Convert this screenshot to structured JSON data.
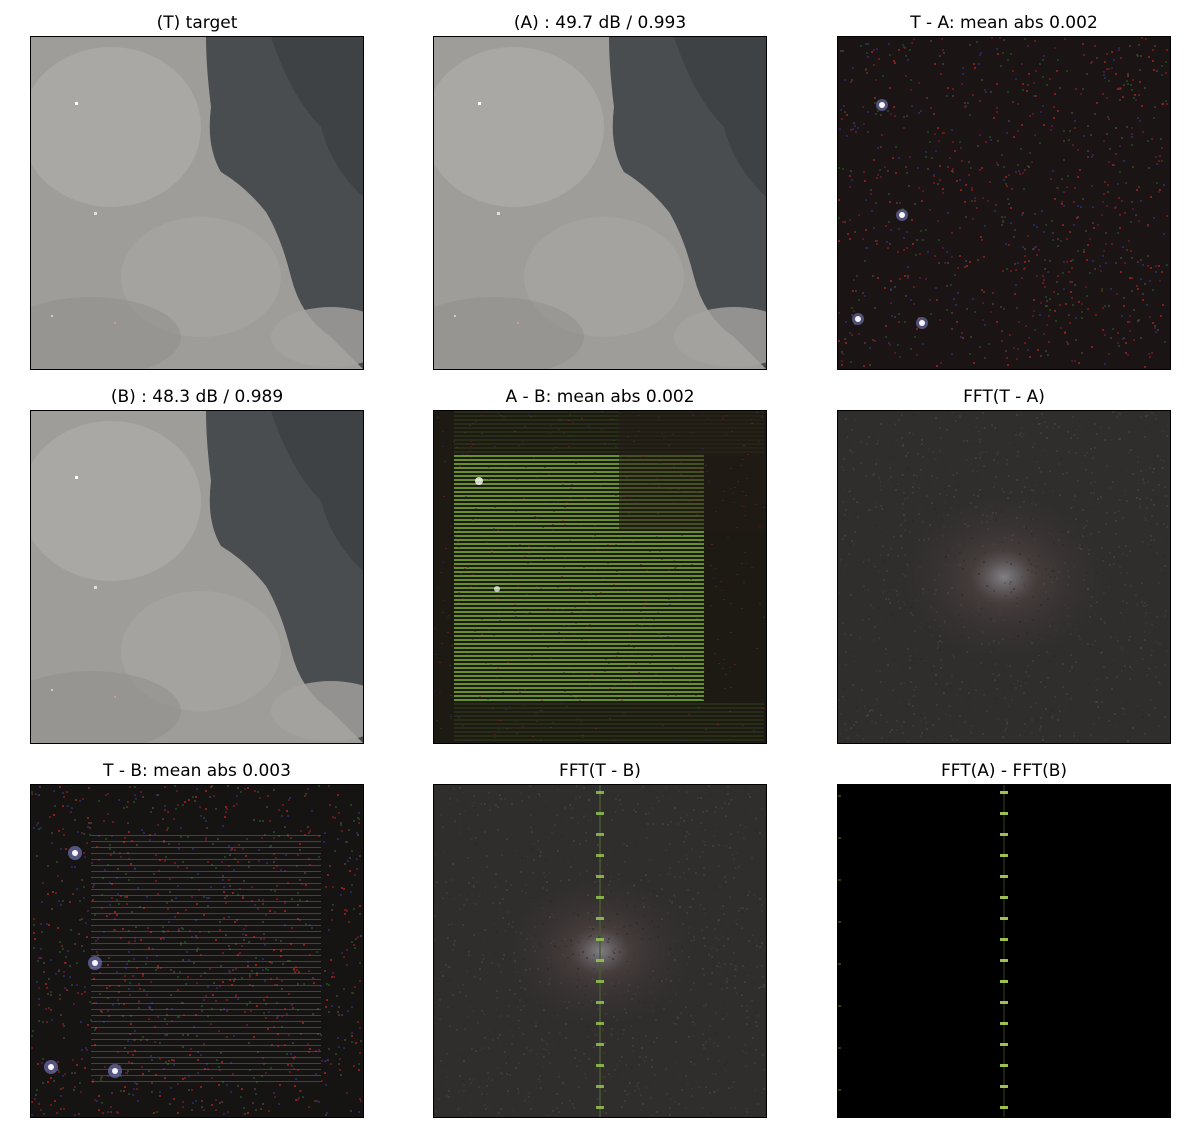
{
  "figure": {
    "panels": [
      {
        "id": "T",
        "title": "(T) target",
        "kind": "photo",
        "variant": "target"
      },
      {
        "id": "A",
        "title": "(A) : 49.7 dB / 0.993",
        "kind": "photo",
        "variant": "a"
      },
      {
        "id": "TA",
        "title": "T - A: mean abs 0.002",
        "kind": "residual",
        "variant": "ta"
      },
      {
        "id": "B",
        "title": "(B) : 48.3 dB / 0.989",
        "kind": "photo",
        "variant": "b"
      },
      {
        "id": "AB",
        "title": "A - B: mean abs 0.002",
        "kind": "banded",
        "variant": "ab"
      },
      {
        "id": "FTA",
        "title": "FFT(T - A)",
        "kind": "fft",
        "variant": "fta"
      },
      {
        "id": "TB",
        "title": "T - B: mean abs 0.003",
        "kind": "residual-banded",
        "variant": "tb"
      },
      {
        "id": "FTB",
        "title": "FFT(T - B)",
        "kind": "fft-line",
        "variant": "ftb"
      },
      {
        "id": "FAB",
        "title": "FFT(A) - FFT(B)",
        "kind": "fft-dark",
        "variant": "fab"
      }
    ],
    "colors": {
      "cloud_light": "#a9a8a4",
      "cloud_dark": "#4a4d50",
      "residual_bg": "#1a1414",
      "band_green": "#7fb83a",
      "fft_bg": "#302e2d",
      "fft_dark_bg": "#000000"
    }
  }
}
